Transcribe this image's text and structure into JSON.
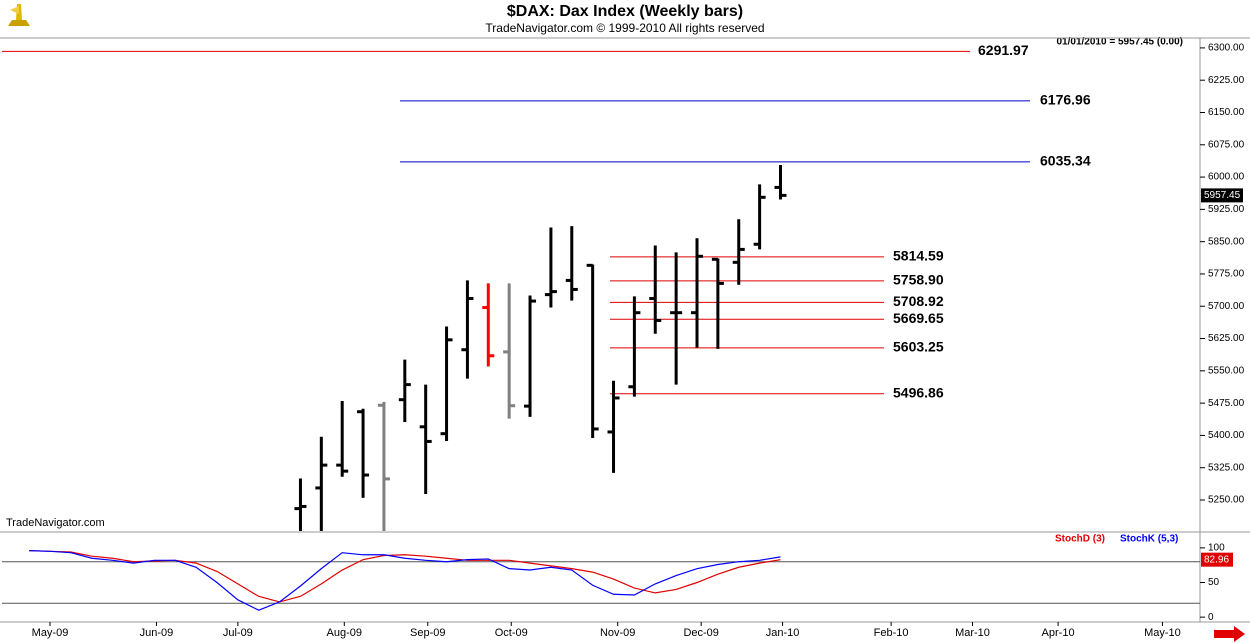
{
  "chart_data": [
    {
      "type": "ohlc",
      "title": "$DAX:  Dax Index  (Weekly bars)",
      "subtitle": "TradeNavigator.com © 1999-2010 All rights reserved",
      "quote": "01/01/2010 = 5957.45 (0.00)",
      "watermark": "TradeNavigator.com",
      "x": [
        12,
        13,
        14,
        15,
        16,
        17,
        18,
        19,
        20,
        21,
        22,
        23,
        24,
        25,
        26,
        27,
        28,
        29,
        30,
        31,
        32,
        33,
        34,
        35
      ],
      "open": [
        5230,
        5278,
        5331,
        5455,
        5470,
        5483,
        5420,
        5404,
        5599,
        5697,
        5594,
        5468,
        5727,
        5760,
        5795,
        5408,
        5513,
        5718,
        5685,
        5685,
        5809,
        5802,
        5844,
        5976
      ],
      "high": [
        5300,
        5397,
        5480,
        5462,
        5478,
        5576,
        5518,
        5653,
        5760,
        5753,
        5753,
        5725,
        5883,
        5886,
        5797,
        5527,
        5723,
        5841,
        5825,
        5858,
        5811,
        5902,
        5983,
        6028
      ],
      "low": [
        5150,
        5150,
        5304,
        5255,
        5150,
        5431,
        5264,
        5387,
        5532,
        5560,
        5439,
        5443,
        5697,
        5713,
        5394,
        5313,
        5490,
        5636,
        5518,
        5604,
        5601,
        5750,
        5832,
        5948
      ],
      "close": [
        5235,
        5331,
        5317,
        5308,
        5299,
        5518,
        5386,
        5622,
        5718,
        5585,
        5469,
        5712,
        5734,
        5739,
        5415,
        5487,
        5685,
        5667,
        5685,
        5816,
        5753,
        5832,
        5953,
        5957.45
      ],
      "colors": [
        "#000000",
        "#000000",
        "#000000",
        "#000000",
        "#808080",
        "#000000",
        "#000000",
        "#000000",
        "#000000",
        "#ff0000",
        "#808080",
        "#000000",
        "#000000",
        "#000000",
        "#000000",
        "#000000",
        "#000000",
        "#000000",
        "#000000",
        "#000000",
        "#000000",
        "#000000",
        "#000000",
        "#000000"
      ],
      "xlim": [
        -2.3,
        55.1
      ],
      "ylim": [
        5178,
        6323
      ],
      "yticks": [
        {
          "value": 6300,
          "label": "6300.00"
        },
        {
          "value": 6225,
          "label": "6225.00"
        },
        {
          "value": 6150,
          "label": "6150.00"
        },
        {
          "value": 6075,
          "label": "6075.00"
        },
        {
          "value": 6000,
          "label": "6000.00"
        },
        {
          "value": 5925,
          "label": "5925.00"
        },
        {
          "value": 5850,
          "label": "5850.00"
        },
        {
          "value": 5775,
          "label": "5775.00"
        },
        {
          "value": 5700,
          "label": "5700.00"
        },
        {
          "value": 5625,
          "label": "5625.00"
        },
        {
          "value": 5550,
          "label": "5550.00"
        },
        {
          "value": 5475,
          "label": "5475.00"
        },
        {
          "value": 5400,
          "label": "5400.00"
        },
        {
          "value": 5325,
          "label": "5325.00"
        },
        {
          "value": 5250,
          "label": "5250.00"
        }
      ],
      "levels": {
        "values": [
          6291.97,
          6176.96,
          6035.34,
          5814.59,
          5758.9,
          5708.92,
          5669.65,
          5603.25,
          5496.86
        ],
        "value_labels": [
          "6291.97",
          "6176.96",
          "6035.34",
          "5814.59",
          "5758.90",
          "5708.92",
          "5669.65",
          "5603.25",
          "5496.86"
        ],
        "colors": [
          "#e00000",
          "#0000cc",
          "#0000cc",
          "#e00000",
          "#e00000",
          "#e00000",
          "#e00000",
          "#e00000",
          "#e00000"
        ]
      }
    },
    {
      "type": "line",
      "x": [
        -1,
        0,
        1,
        2,
        3,
        4,
        5,
        6,
        7,
        8,
        9,
        10,
        11,
        12,
        13,
        14,
        15,
        16,
        17,
        18,
        19,
        20,
        21,
        22,
        23,
        24,
        25,
        26,
        27,
        28,
        29,
        30,
        31,
        32,
        33,
        34,
        35
      ],
      "series": [
        {
          "name": "StochD (3)",
          "color": "#e00000",
          "values": [
            96,
            95,
            94,
            88,
            85,
            80,
            81,
            82,
            78,
            66,
            48,
            30,
            22,
            30,
            48,
            68,
            83,
            89,
            90,
            88,
            85,
            82,
            82,
            82,
            78,
            74,
            70,
            65,
            55,
            42,
            35,
            40,
            50,
            62,
            72,
            78,
            82.96
          ]
        },
        {
          "name": "StochK (5,3)",
          "color": "#0000ff",
          "values": [
            96,
            95,
            93,
            85,
            82,
            78,
            82,
            82,
            72,
            50,
            25,
            10,
            22,
            45,
            70,
            93,
            90,
            90,
            85,
            82,
            80,
            83,
            84,
            70,
            68,
            72,
            68,
            46,
            33,
            32,
            48,
            60,
            70,
            76,
            80,
            82,
            87
          ]
        }
      ],
      "xlim": [
        -2.3,
        55.1
      ],
      "ylim": [
        -7,
        120
      ],
      "yticks": [
        100,
        50,
        0
      ],
      "levels": [
        80,
        20
      ],
      "xticks": [
        {
          "value": 0,
          "label": "May-09"
        },
        {
          "value": 5.1,
          "label": "Jun-09"
        },
        {
          "value": 9.0,
          "label": "Jul-09"
        },
        {
          "value": 14.1,
          "label": "Aug-09"
        },
        {
          "value": 18.1,
          "label": "Sep-09"
        },
        {
          "value": 22.1,
          "label": "Oct-09"
        },
        {
          "value": 27.2,
          "label": "Nov-09"
        },
        {
          "value": 31.2,
          "label": "Dec-09"
        },
        {
          "value": 35.1,
          "label": "Jan-10"
        },
        {
          "value": 40.3,
          "label": "Feb-10"
        },
        {
          "value": 44.2,
          "label": "Mar-10"
        },
        {
          "value": 48.3,
          "label": "Apr-10"
        },
        {
          "value": 53.3,
          "label": "May-10"
        }
      ]
    }
  ]
}
